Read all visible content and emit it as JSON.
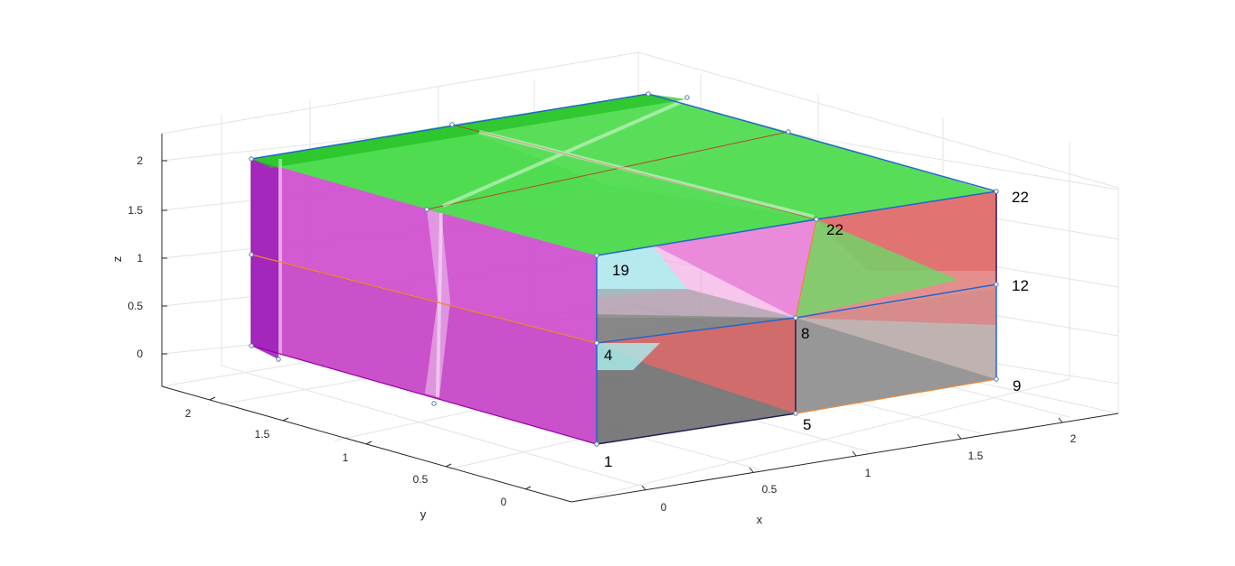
{
  "figure": {
    "type": "3d-mesh-plot",
    "axes": {
      "x": {
        "label": "x",
        "ticks": [
          "0",
          "0.5",
          "1",
          "1.5",
          "2"
        ]
      },
      "y": {
        "label": "y",
        "ticks": [
          "0",
          "0.5",
          "1",
          "1.5",
          "2"
        ]
      },
      "z": {
        "label": "z",
        "ticks": [
          "0",
          "0.5",
          "1",
          "1.5",
          "2"
        ]
      }
    },
    "node_labels": [
      "1",
      "4",
      "19",
      "5",
      "8",
      "22",
      "9",
      "12",
      "22"
    ],
    "colors": {
      "top": "#33d633",
      "side_magenta": "#cc33cc",
      "dark_magenta": "#9900aa",
      "red": "#e04a4a",
      "gray": "#6e6e6e",
      "light_gray": "#b5a3a3",
      "cyan": "#aaf0f0",
      "pink": "#f08ad0"
    }
  }
}
